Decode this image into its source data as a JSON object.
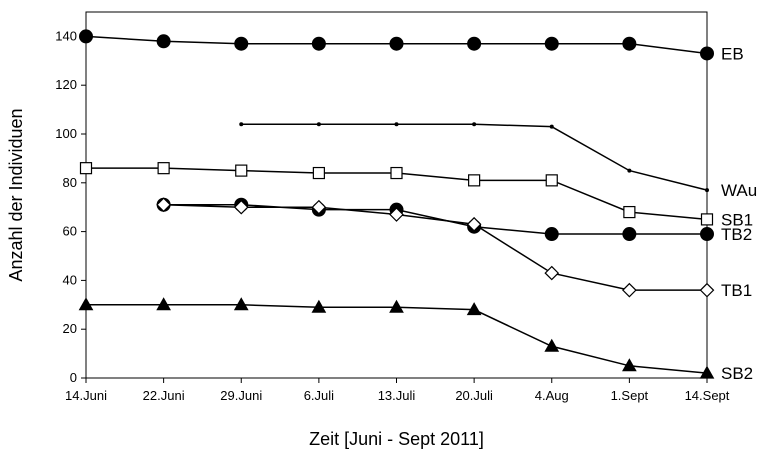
{
  "chart_data": {
    "type": "line",
    "title": "",
    "xlabel": "Zeit [Juni - Sept 2011]",
    "ylabel": "Anzahl der Individuen",
    "categories": [
      "14.Juni",
      "22.Juni",
      "29.Juni",
      "6.Juli",
      "13.Juli",
      "20.Juli",
      "4.Aug",
      "1.Sept",
      "14.Sept"
    ],
    "ylim": [
      0,
      150
    ],
    "yticks": [
      0,
      20,
      40,
      60,
      80,
      100,
      120,
      140
    ],
    "grid": false,
    "legend": "series labels at right end of lines",
    "series": [
      {
        "name": "EB",
        "marker": "filled-circle",
        "values": [
          140,
          138,
          137,
          137,
          137,
          137,
          137,
          137,
          133
        ]
      },
      {
        "name": "WAu",
        "marker": "small-dot",
        "values": [
          null,
          null,
          104,
          104,
          104,
          104,
          103,
          85,
          77
        ]
      },
      {
        "name": "SB1",
        "marker": "open-square",
        "values": [
          86,
          86,
          85,
          84,
          84,
          81,
          81,
          68,
          65
        ]
      },
      {
        "name": "TB2",
        "marker": "filled-circle",
        "values": [
          null,
          71,
          71,
          69,
          69,
          62,
          59,
          59,
          59
        ]
      },
      {
        "name": "TB1",
        "marker": "open-diamond",
        "values": [
          null,
          71,
          70,
          70,
          67,
          63,
          43,
          36,
          36
        ]
      },
      {
        "name": "SB2",
        "marker": "filled-triangle",
        "values": [
          30,
          30,
          30,
          29,
          29,
          28,
          13,
          5,
          2
        ]
      }
    ]
  }
}
